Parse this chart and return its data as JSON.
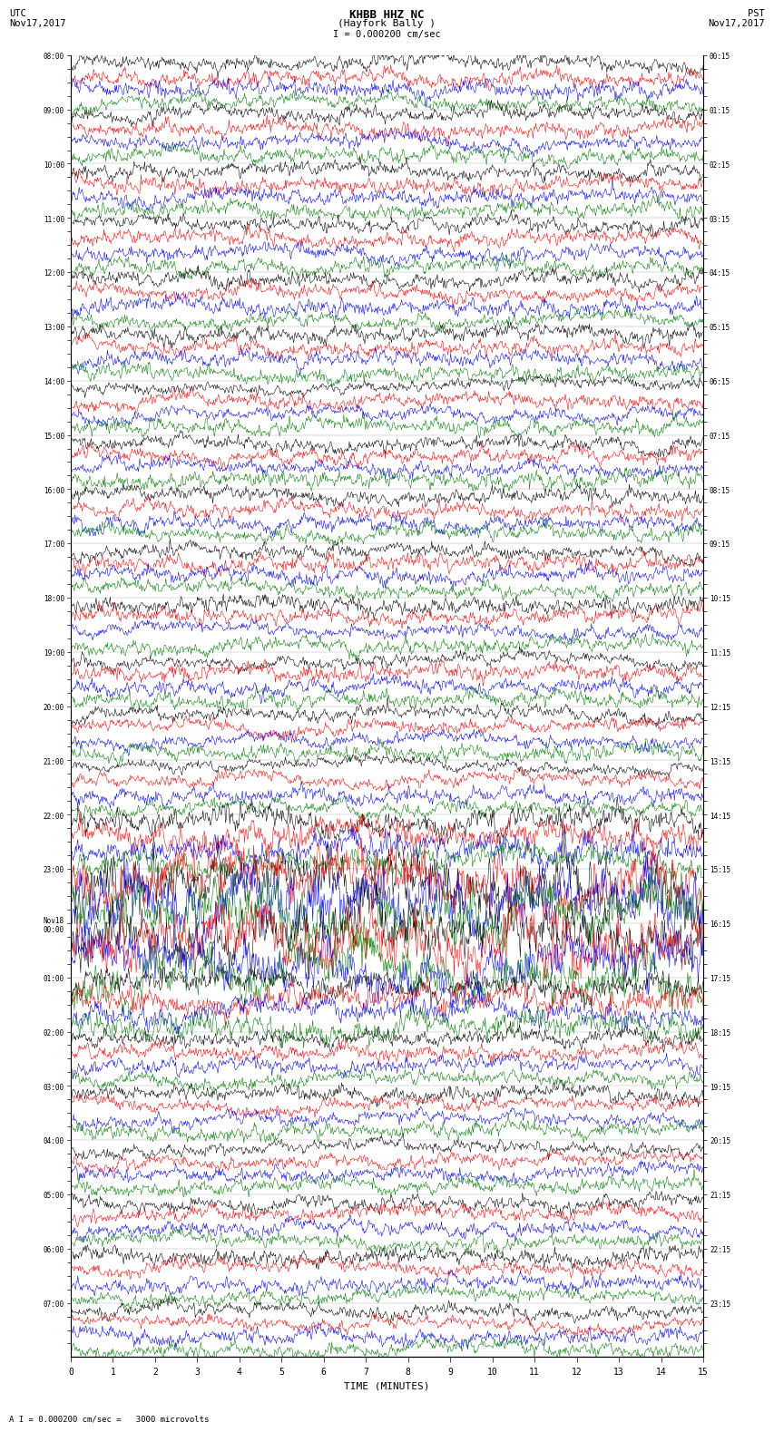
{
  "title_line1": "KHBB HHZ NC",
  "title_line2": "(Hayfork Bally )",
  "title_scale": "I = 0.000200 cm/sec",
  "left_label_line1": "UTC",
  "left_label_line2": "Nov17,2017",
  "right_label_line1": "PST",
  "right_label_line2": "Nov17,2017",
  "xlabel": "TIME (MINUTES)",
  "bottom_note": "A I = 0.000200 cm/sec =   3000 microvolts",
  "colors": [
    "black",
    "red",
    "blue",
    "green"
  ],
  "bg_color": "white",
  "fig_width": 8.5,
  "fig_height": 16.13,
  "xticks": [
    0,
    1,
    2,
    3,
    4,
    5,
    6,
    7,
    8,
    9,
    10,
    11,
    12,
    13,
    14,
    15
  ],
  "seed": 42,
  "left_time_labels": [
    "08:00",
    "",
    "",
    "",
    "09:00",
    "",
    "",
    "",
    "10:00",
    "",
    "",
    "",
    "11:00",
    "",
    "",
    "",
    "12:00",
    "",
    "",
    "",
    "13:00",
    "",
    "",
    "",
    "14:00",
    "",
    "",
    "",
    "15:00",
    "",
    "",
    "",
    "16:00",
    "",
    "",
    "",
    "17:00",
    "",
    "",
    "",
    "18:00",
    "",
    "",
    "",
    "19:00",
    "",
    "",
    "",
    "20:00",
    "",
    "",
    "",
    "21:00",
    "",
    "",
    "",
    "22:00",
    "",
    "",
    "",
    "23:00",
    "",
    "",
    "",
    "Nov18\n00:00",
    "",
    "",
    "",
    "01:00",
    "",
    "",
    "",
    "02:00",
    "",
    "",
    "",
    "03:00",
    "",
    "",
    "",
    "04:00",
    "",
    "",
    "",
    "05:00",
    "",
    "",
    "",
    "06:00",
    "",
    "",
    "",
    "07:00",
    "",
    "",
    ""
  ],
  "right_time_labels": [
    "00:15",
    "",
    "",
    "",
    "01:15",
    "",
    "",
    "",
    "02:15",
    "",
    "",
    "",
    "03:15",
    "",
    "",
    "",
    "04:15",
    "",
    "",
    "",
    "05:15",
    "",
    "",
    "",
    "06:15",
    "",
    "",
    "",
    "07:15",
    "",
    "",
    "",
    "08:15",
    "",
    "",
    "",
    "09:15",
    "",
    "",
    "",
    "10:15",
    "",
    "",
    "",
    "11:15",
    "",
    "",
    "",
    "12:15",
    "",
    "",
    "",
    "13:15",
    "",
    "",
    "",
    "14:15",
    "",
    "",
    "",
    "15:15",
    "",
    "",
    "",
    "16:15",
    "",
    "",
    "",
    "17:15",
    "",
    "",
    "",
    "18:15",
    "",
    "",
    "",
    "19:15",
    "",
    "",
    "",
    "20:15",
    "",
    "",
    "",
    "21:15",
    "",
    "",
    "",
    "22:15",
    "",
    "",
    "",
    "23:15",
    "",
    "",
    ""
  ]
}
